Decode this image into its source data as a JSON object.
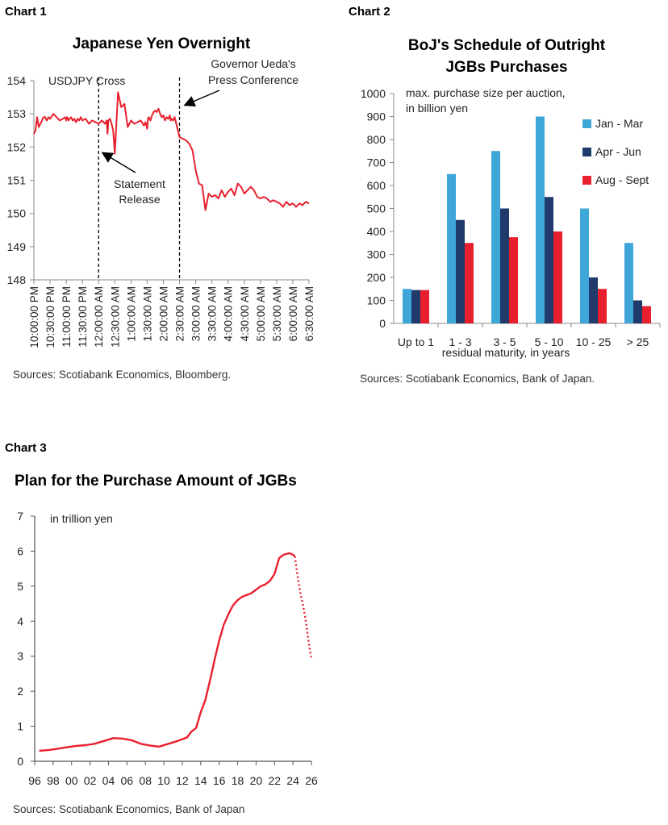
{
  "chart_labels": [
    "Chart 1",
    "Chart 2",
    "Chart 3"
  ],
  "chart_data": [
    {
      "type": "line",
      "title": "Japanese Yen Overnight",
      "series": [
        {
          "name": "USDJPY Cross"
        }
      ],
      "ylim": [
        148,
        154
      ],
      "yticks": [
        "148",
        "149",
        "150",
        "151",
        "152",
        "153",
        "154"
      ],
      "x_tick_labels": [
        "10:00:00 PM",
        "10:30:00 PM",
        "11:00:00 PM",
        "11:30:00 PM",
        "12:00:00 AM",
        "12:30:00 AM",
        "1:00:00 AM",
        "1:30:00 AM",
        "2:00:00 AM",
        "2:30:00 AM",
        "3:00:00 AM",
        "3:30:00 AM",
        "4:00:00 AM",
        "4:30:00 AM",
        "5:00:00 AM",
        "5:30:00 AM",
        "6:00:00 AM",
        "6:30:00 AM"
      ],
      "x_hours": [
        0,
        0.1,
        0.2,
        0.3,
        0.4,
        0.5,
        0.6,
        0.7,
        0.8,
        0.9,
        1.0,
        1.2,
        1.4,
        1.6,
        1.8,
        1.95,
        2.0,
        2.05,
        2.1,
        2.15,
        2.2,
        2.3,
        2.4,
        2.5,
        2.6,
        2.7,
        2.8,
        2.9,
        3.0,
        3.2,
        3.4,
        3.6,
        3.8,
        4.0,
        4.2,
        4.4,
        4.5,
        4.55,
        4.6,
        4.7,
        4.8,
        4.9,
        5.0,
        5.2,
        5.4,
        5.6,
        5.8,
        6.0,
        6.2,
        6.4,
        6.6,
        6.8,
        6.9,
        7.0,
        7.05,
        7.1,
        7.2,
        7.3,
        7.4,
        7.5,
        7.6,
        7.7,
        7.8,
        7.9,
        8.0,
        8.1,
        8.2,
        8.3,
        8.4,
        8.45,
        8.5,
        8.6,
        8.7,
        8.8,
        8.9,
        9.0,
        9.2,
        9.4,
        9.6,
        9.8,
        10.0,
        10.2,
        10.4,
        10.6,
        10.8,
        11.0,
        11.2,
        11.4,
        11.6,
        11.8,
        12.0,
        12.2,
        12.4,
        12.6,
        12.8,
        13.0,
        13.2,
        13.4,
        13.6,
        13.8,
        14.0,
        14.2,
        14.4,
        14.6,
        14.8,
        15.0,
        15.2,
        15.4,
        15.6,
        15.8,
        16.0,
        16.2,
        16.4,
        16.6,
        16.8,
        17.0
      ],
      "values": [
        152.4,
        152.5,
        152.9,
        152.6,
        152.7,
        152.8,
        152.9,
        152.9,
        152.8,
        152.9,
        152.85,
        153.0,
        152.9,
        152.8,
        152.85,
        152.9,
        152.8,
        152.9,
        152.85,
        152.8,
        152.85,
        152.9,
        152.8,
        152.85,
        152.75,
        152.85,
        152.8,
        152.9,
        152.8,
        152.85,
        152.7,
        152.8,
        152.75,
        152.7,
        152.8,
        152.7,
        152.8,
        152.4,
        152.8,
        152.85,
        152.7,
        152.5,
        151.8,
        153.65,
        153.2,
        153.3,
        152.6,
        152.8,
        152.7,
        152.75,
        152.8,
        152.65,
        152.75,
        152.55,
        152.85,
        152.9,
        152.8,
        152.95,
        153.05,
        153.1,
        153.05,
        153.15,
        153.0,
        152.9,
        152.95,
        152.8,
        152.9,
        152.85,
        152.95,
        152.8,
        152.85,
        152.8,
        152.9,
        152.7,
        152.5,
        152.3,
        152.25,
        152.2,
        152.1,
        151.9,
        151.3,
        150.9,
        150.85,
        150.1,
        150.6,
        150.5,
        150.55,
        150.45,
        150.7,
        150.5,
        150.65,
        150.75,
        150.55,
        150.9,
        150.8,
        150.6,
        150.7,
        150.8,
        150.7,
        150.5,
        150.45,
        150.5,
        150.45,
        150.35,
        150.4,
        150.35,
        150.3,
        150.2,
        150.35,
        150.25,
        150.3,
        150.2,
        150.3,
        150.25,
        150.35,
        150.3
      ],
      "vlines_hours": [
        4.0,
        9.0
      ],
      "annotations": [
        "USDJPY Cross",
        "Governor Ueda's",
        "Press Conference",
        "Statement",
        "Release"
      ],
      "source": "Sources: Scotiabank Economics, Bloomberg.",
      "color": "#e8202e"
    },
    {
      "type": "bar",
      "title_lines": [
        "BoJ's Schedule of Outright",
        "JGBs Purchases"
      ],
      "ylim": [
        0,
        1000
      ],
      "yticks": [
        "0",
        "100",
        "200",
        "300",
        "400",
        "500",
        "600",
        "700",
        "800",
        "900",
        "1000"
      ],
      "ylabel_lines": [
        "max. purchase size per auction,",
        "in billion yen"
      ],
      "xlabel": "residual maturity, in years",
      "categories": [
        "Up to 1",
        "1 - 3",
        "3 - 5",
        "5 - 10",
        "10 - 25",
        "> 25"
      ],
      "series": [
        {
          "name": "Jan - Mar",
          "color": "#3fa6d8",
          "values": [
            150,
            650,
            750,
            900,
            500,
            350
          ]
        },
        {
          "name": "Apr - Jun",
          "color": "#1f3a6b",
          "values": [
            145,
            450,
            500,
            550,
            200,
            100
          ]
        },
        {
          "name": "Aug - Sept",
          "color": "#e8202e",
          "values": [
            145,
            350,
            375,
            400,
            150,
            75
          ]
        }
      ],
      "source": "Sources: Scotiabank Economics, Bank of Japan."
    },
    {
      "type": "line",
      "title": "Plan for the Purchase Amount of JGBs",
      "ylim": [
        0,
        7
      ],
      "yticks": [
        "0",
        "1",
        "2",
        "3",
        "4",
        "5",
        "6",
        "7"
      ],
      "ylabel": "in trillion yen",
      "xticks": [
        "96",
        "98",
        "00",
        "02",
        "04",
        "06",
        "08",
        "10",
        "12",
        "14",
        "16",
        "18",
        "20",
        "22",
        "24",
        "26"
      ],
      "xlim": [
        1996,
        2026
      ],
      "x": [
        1996.5,
        1997.5,
        1998.5,
        1999.5,
        2000.5,
        2001.5,
        2002.5,
        2003.5,
        2004.5,
        2005.5,
        2006.5,
        2007.5,
        2008.5,
        2009.5,
        2010.5,
        2011.5,
        2012.5,
        2013.0,
        2013.5,
        2014.0,
        2014.5,
        2015.0,
        2015.5,
        2016.0,
        2016.5,
        2017.0,
        2017.5,
        2018.0,
        2018.5,
        2019.0,
        2019.5,
        2020.0,
        2020.5,
        2021.0,
        2021.5,
        2022.0,
        2022.5,
        2023.0,
        2023.3,
        2023.6,
        2024.0,
        2024.2
      ],
      "values": [
        0.3,
        0.32,
        0.36,
        0.4,
        0.44,
        0.46,
        0.5,
        0.58,
        0.66,
        0.65,
        0.6,
        0.5,
        0.45,
        0.42,
        0.5,
        0.58,
        0.68,
        0.85,
        0.95,
        1.4,
        1.75,
        2.3,
        2.9,
        3.45,
        3.9,
        4.2,
        4.45,
        4.6,
        4.7,
        4.75,
        4.8,
        4.9,
        5.0,
        5.05,
        5.15,
        5.35,
        5.8,
        5.9,
        5.92,
        5.94,
        5.9,
        5.85
      ],
      "projection_x": [
        2024.2,
        2024.5,
        2024.8,
        2025.1,
        2025.4,
        2025.7,
        2026.0
      ],
      "projection_values": [
        5.85,
        5.3,
        4.8,
        4.45,
        4.0,
        3.4,
        2.9
      ],
      "source": "Sources: Scotiabank Economics, Bank of Japan",
      "color": "#e8202e"
    }
  ]
}
